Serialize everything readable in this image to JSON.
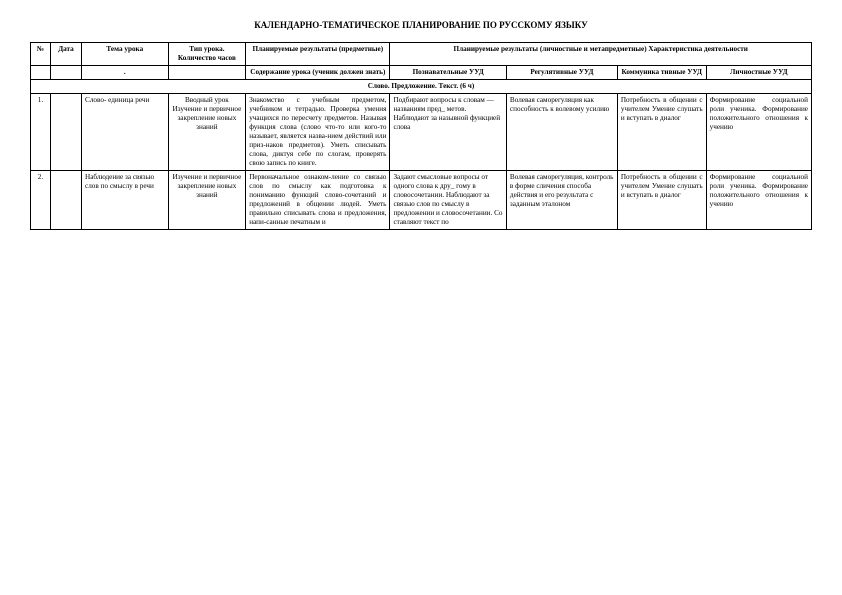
{
  "doc_title": "КАЛЕНДАРНО-ТЕМАТИЧЕСКОЕ ПЛАНИРОВАНИЕ ПО РУССКОМУ ЯЗЫКУ",
  "headers": {
    "num": "№",
    "date": "Дата",
    "topic": "Тема урока",
    "type": "Тип урока. Количество часов",
    "planned_subject": "Планируемые результаты (предметные)",
    "planned_meta": "Планируемые результаты (личностные и метапредметные) Характеристика деятельности",
    "content": "Содержание урока (ученик должен знать)",
    "pozn": "Познавательные УУД",
    "reg": "Регулятивные УУД",
    "komm": "Коммуника тивные УУД",
    "lich": "Личностные УУД"
  },
  "section": "Слово. Предложение. Текст. (6 ч)",
  "rows": [
    {
      "num": "1.",
      "date": "",
      "topic": "Слово- единица речи",
      "type": "Вводный урок Изучение и первичное закрепление новых знаний",
      "content": "Знакомство с учебным предметом, учебником и тетрадью. Проверка умения учащихся по пересчету предметов. Называя функция слова (слово что-то или кого-то называет, является назва-нием действий или приз-наков предметов). Уметь списывать слова, диктуя себе по слогам, проверять свою запись по книге.",
      "pozn": "Подбирают вопросы к словам — названиям пред_ метов. Наблюдают за назывной функцией слова",
      "reg": "Волевая саморегуляция как способность к волевому усилию",
      "komm": "Потребность в общении с учителем Умение слушать и вступать в диалог",
      "lich": "Формирование социальной роли ученика. Формирование положительного отношения к учению"
    },
    {
      "num": "2.",
      "date": "",
      "topic": "Наблюдение за связью слов по смыслу в речи",
      "type": "Изучение и первичное закрепление новых знаний",
      "content": "Первоначальное ознаком-ление со связью слов по смыслу как подготовка к пониманию функций слово-сочетаний и предложений в общении людей. Уметь правильно списывать слова и предложения, напи-санные печатным и",
      "pozn": "Задают смысловые вопросы от одного слова к дру_ гому в словосочетании. Наблюдают за связью слов по смыслу в предложении и словосочетании. Со ставляют текст по",
      "reg": "Волевая саморегуляция, контроль в форме сличения способа действия и его результата с заданным эталоном",
      "komm": "Потребность в общении с учителем Умение слушать и вступать в диалог",
      "lich": "Формирование социальной роли ученика. Формирование положительного отношения к учению"
    }
  ]
}
